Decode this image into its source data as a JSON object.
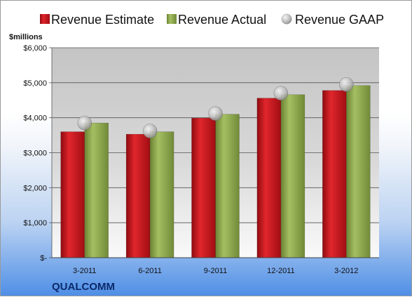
{
  "chart_data": {
    "type": "bar",
    "categories": [
      "3-2011",
      "6-2011",
      "9-2011",
      "12-2011",
      "3-2012"
    ],
    "series": [
      {
        "name": "Revenue Estimate",
        "kind": "bar",
        "color": "#c8151b",
        "values": [
          3600,
          3530,
          3990,
          4560,
          4780
        ]
      },
      {
        "name": "Revenue Actual",
        "kind": "bar",
        "color": "#8fa94e",
        "values": [
          3850,
          3600,
          4100,
          4660,
          4920
        ]
      },
      {
        "name": "Revenue GAAP",
        "kind": "marker",
        "color": "#b9b9b9",
        "values": [
          3850,
          3620,
          4120,
          4700,
          4950
        ]
      }
    ],
    "ylabel": "$millions",
    "ylim": [
      0,
      6000
    ],
    "yticks": [
      0,
      1000,
      2000,
      3000,
      4000,
      5000,
      6000
    ],
    "ytick_labels": [
      "$-",
      "$1,000",
      "$2,000",
      "$3,000",
      "$4,000",
      "$5,000",
      "$6,000"
    ],
    "grid": true,
    "legend_position": "top"
  },
  "company_label": "QUALCOMM"
}
